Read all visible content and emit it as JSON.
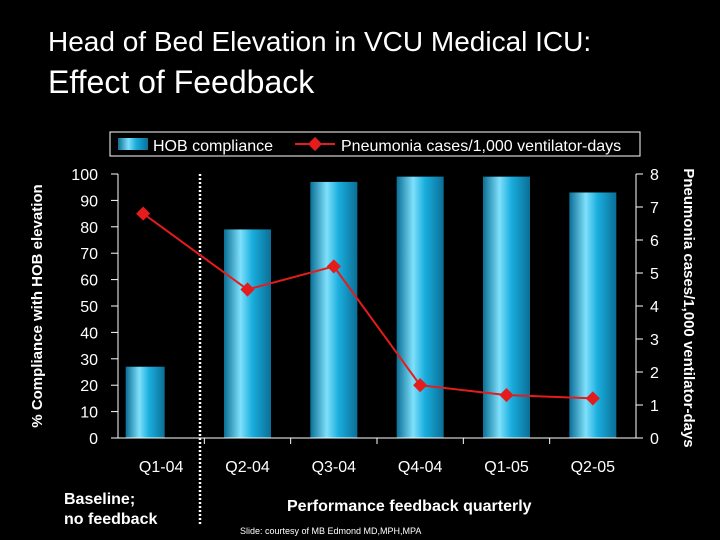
{
  "slide": {
    "title_line1": "Head of Bed Elevation in VCU Medical ICU:",
    "title_line2": "Effect of Feedback",
    "credit": "Slide: courtesy of MB Edmond MD,MPH,MPA"
  },
  "annotations": {
    "baseline_line1": "Baseline;",
    "baseline_line2": "no feedback",
    "feedback": "Performance feedback quarterly"
  },
  "colors": {
    "bar": "#1aaede",
    "bar_light": "#7fe0fb",
    "bar_dark": "#0a6f96",
    "line": "#e41c1c",
    "axis": "#ffffff",
    "background": "#000000"
  },
  "chart_data": {
    "type": "bar",
    "categories": [
      "Q1-04",
      "Q2-04",
      "Q3-04",
      "Q4-04",
      "Q1-05",
      "Q2-05"
    ],
    "series": [
      {
        "name": "HOB compliance",
        "kind": "bar",
        "axis": "left",
        "values": [
          27,
          79,
          97,
          99,
          99,
          93
        ]
      },
      {
        "name": "Pneumonia cases/1,000 ventilator-days",
        "kind": "line",
        "axis": "right",
        "values": [
          6.8,
          4.5,
          5.2,
          1.6,
          1.3,
          1.2
        ]
      }
    ],
    "ylabel": "% Compliance with HOB elevation",
    "y2label": "Pneumonia cases/1,000 ventilator-days",
    "ylim": [
      0,
      100
    ],
    "y2lim": [
      0,
      8
    ],
    "yticks": [
      "0",
      "10",
      "20",
      "30",
      "40",
      "50",
      "60",
      "70",
      "80",
      "90",
      "100"
    ],
    "y2ticks": [
      "0",
      "1",
      "2",
      "3",
      "4",
      "5",
      "6",
      "7",
      "8"
    ],
    "legend": [
      "HOB compliance",
      "Pneumonia cases/1,000 ventilator-days"
    ],
    "legend_position": "top"
  }
}
